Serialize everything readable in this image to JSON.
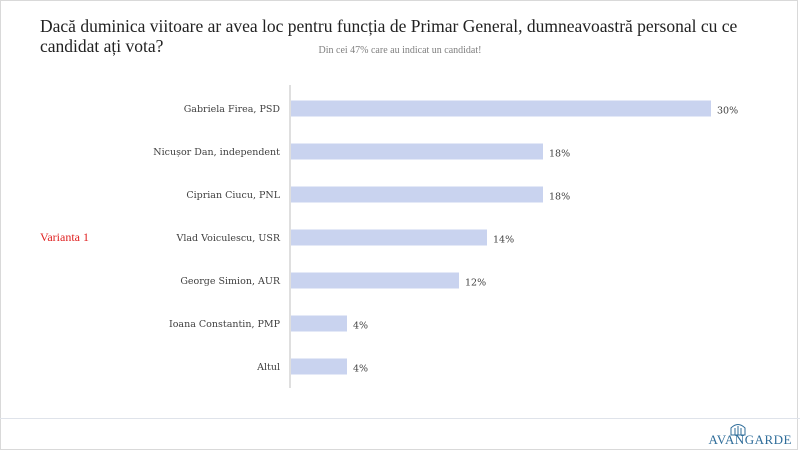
{
  "title": "Dacă duminica viitoare ar avea loc pentru funcția de Primar General, dumneavoastră personal cu ce candidat ați vota?",
  "subtitle": "Din cei 47% care au indicat un candidat!",
  "variant_label": "Varianta 1",
  "logo": {
    "text": "AVANGARDE",
    "icon": "building-arch-icon"
  },
  "colors": {
    "bar": "#c9d3ef",
    "axis": "#bfbfbf",
    "variant": "#e02020",
    "logo": "#2f6d9a"
  },
  "chart_data": {
    "type": "bar",
    "orientation": "horizontal",
    "categories": [
      "Gabriela Firea, PSD",
      "Nicușor Dan, independent",
      "Ciprian Ciucu, PNL",
      "Vlad Voiculescu, USR",
      "George Simion, AUR",
      "Ioana Constantin, PMP",
      "Altul"
    ],
    "values": [
      30,
      18,
      18,
      14,
      12,
      4,
      4
    ],
    "value_labels": [
      "30%",
      "18%",
      "18%",
      "14%",
      "12%",
      "4%",
      "4%"
    ],
    "xlim": [
      0,
      30
    ],
    "grid": false,
    "legend": "none"
  }
}
